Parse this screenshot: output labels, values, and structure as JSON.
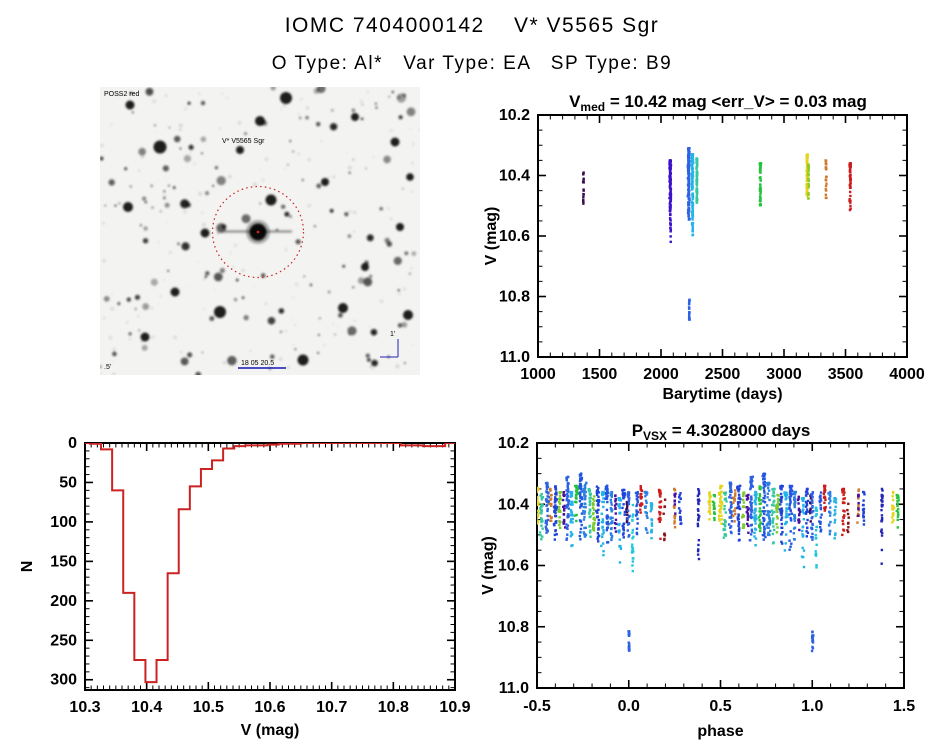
{
  "header": {
    "title": "IOMC 7404000142    V* V5565 Sgr",
    "subtitle": "O Type: Al*   Var Type: EA   SP Type: B9"
  },
  "finder": {
    "survey_label": "POSS2 red",
    "star_label": "V* V5565 Sgr",
    "bottom_label": "18 05 20.5",
    "corner_label": ".5'",
    "scale_label": "1'",
    "circle_color": "#cc2222",
    "annotation_blue": "#2222bb",
    "annotation_red": "#cc2222"
  },
  "chart_data": [
    {
      "id": "lightcurve",
      "type": "scatter",
      "title_main": "V",
      "title_sub": "med",
      "title_rest": " = 10.42 mag <err_V> = 0.03 mag",
      "xlabel": "Barytime (days)",
      "ylabel": "V (mag)",
      "xlim": [
        1000,
        4000
      ],
      "ylim": [
        10.2,
        11.0
      ],
      "y_inverted": true,
      "xticks": [
        1000,
        1500,
        2000,
        2500,
        3000,
        3500,
        4000
      ],
      "xtick_labels": [
        "1000",
        "1500",
        "2000",
        "2500",
        "3000",
        "3500",
        "4000"
      ],
      "x_minor": 100,
      "yticks": [
        10.2,
        10.4,
        10.6,
        10.8,
        11.0
      ],
      "ytick_labels": [
        "10.2",
        "10.4",
        "10.6",
        "10.8",
        "11.0"
      ],
      "y_minor": 0.05,
      "clusters": [
        {
          "x": 1370,
          "s": 4,
          "c": "#3d0a52",
          "y0": 10.39,
          "y1": 10.51,
          "n": 16,
          "k": 1.0
        },
        {
          "x": 2075,
          "s": 7,
          "c": "#3b12c8",
          "y0": 10.35,
          "y1": 10.55,
          "n": 110,
          "k": 1.6
        },
        {
          "x": 2078,
          "s": 3,
          "c": "#3b12c8",
          "y0": 10.55,
          "y1": 10.62,
          "n": 10,
          "k": 1.0
        },
        {
          "x": 2225,
          "s": 8,
          "c": "#2d62e2",
          "y0": 10.31,
          "y1": 10.55,
          "n": 130,
          "k": 1.6
        },
        {
          "x": 2230,
          "s": 3,
          "c": "#2d62e2",
          "y0": 10.81,
          "y1": 10.88,
          "n": 22,
          "k": 1.0
        },
        {
          "x": 2255,
          "s": 7,
          "c": "#22b4e8",
          "y0": 10.33,
          "y1": 10.57,
          "n": 110,
          "k": 1.7
        },
        {
          "x": 2258,
          "s": 3,
          "c": "#22b4e8",
          "y0": 10.57,
          "y1": 10.63,
          "n": 8,
          "k": 1.0
        },
        {
          "x": 2292,
          "s": 4,
          "c": "#35c8a0",
          "y0": 10.34,
          "y1": 10.49,
          "n": 60,
          "k": 1.2
        },
        {
          "x": 2808,
          "s": 6,
          "c": "#25c33b",
          "y0": 10.36,
          "y1": 10.5,
          "n": 55,
          "k": 1.8
        },
        {
          "x": 3188,
          "s": 6,
          "c": "#e4d51c",
          "y0": 10.33,
          "y1": 10.47,
          "n": 70,
          "k": 1.5
        },
        {
          "x": 3200,
          "s": 4,
          "c": "#8ccc28",
          "y0": 10.36,
          "y1": 10.48,
          "n": 30,
          "k": 1.5
        },
        {
          "x": 3342,
          "s": 4,
          "c": "#cf7a2c",
          "y0": 10.35,
          "y1": 10.48,
          "n": 22,
          "k": 1.2
        },
        {
          "x": 3538,
          "s": 6,
          "c": "#cd1d1d",
          "y0": 10.36,
          "y1": 10.52,
          "n": 60,
          "k": 1.8
        }
      ]
    },
    {
      "id": "histogram",
      "type": "bar",
      "xlabel": "V (mag)",
      "ylabel": "N",
      "color": "#cc2222",
      "xlim": [
        10.3,
        10.9
      ],
      "ylim": [
        0,
        313
      ],
      "xticks": [
        10.3,
        10.4,
        10.5,
        10.6,
        10.7,
        10.8,
        10.9
      ],
      "xtick_labels": [
        "10.3",
        "10.4",
        "10.5",
        "10.6",
        "10.7",
        "10.8",
        "10.9"
      ],
      "x_minor": 0.01,
      "yticks": [
        0,
        50,
        100,
        150,
        200,
        250,
        300
      ],
      "ytick_labels": [
        "0",
        "50",
        "100",
        "150",
        "200",
        "250",
        "300"
      ],
      "y_minor": 10,
      "bin_start": 10.308,
      "bin_width": 0.018,
      "counts": [
        1,
        8,
        60,
        190,
        275,
        303,
        275,
        165,
        84,
        55,
        33,
        22,
        7,
        4,
        3,
        3,
        2,
        1,
        1,
        0,
        0,
        0,
        0,
        0,
        0,
        0,
        0,
        0,
        3,
        3,
        4,
        4
      ]
    },
    {
      "id": "phase",
      "type": "scatter",
      "title_main": "P",
      "title_sub": "VSX",
      "title_rest": " = 4.3028000 days",
      "xlabel": "phase",
      "ylabel": "V (mag)",
      "xlim": [
        -0.5,
        1.5
      ],
      "ylim": [
        10.2,
        11.0
      ],
      "y_inverted": true,
      "fold": true,
      "xticks": [
        -0.5,
        0.0,
        0.5,
        1.0,
        1.5
      ],
      "xtick_labels": [
        "-0.5",
        "0.0",
        "0.5",
        "1.0",
        "1.5"
      ],
      "x_minor": 0.1,
      "yticks": [
        10.2,
        10.4,
        10.6,
        10.8,
        11.0
      ],
      "ytick_labels": [
        "10.2",
        "10.4",
        "10.6",
        "10.8",
        "11.0"
      ],
      "y_minor": 0.05,
      "clusters": [
        {
          "x": 0.5,
          "s": 0.01,
          "c": "#e4d51c",
          "y0": 10.34,
          "y1": 10.47,
          "n": 35,
          "k": 1.5
        },
        {
          "x": 0.525,
          "s": 0.009,
          "c": "#35c8a0",
          "y0": 10.36,
          "y1": 10.52,
          "n": 28,
          "k": 1.5
        },
        {
          "x": 0.555,
          "s": 0.01,
          "c": "#2d62e2",
          "y0": 10.33,
          "y1": 10.5,
          "n": 40,
          "k": 1.5
        },
        {
          "x": 0.575,
          "s": 0.007,
          "c": "#cf7a2c",
          "y0": 10.35,
          "y1": 10.46,
          "n": 16,
          "k": 1.2
        },
        {
          "x": 0.6,
          "s": 0.01,
          "c": "#2043d8",
          "y0": 10.34,
          "y1": 10.52,
          "n": 40,
          "k": 1.6
        },
        {
          "x": 0.625,
          "s": 0.008,
          "c": "#7acc28",
          "y0": 10.36,
          "y1": 10.48,
          "n": 22,
          "k": 1.4
        },
        {
          "x": 0.648,
          "s": 0.007,
          "c": "#4a10a0",
          "y0": 10.36,
          "y1": 10.5,
          "n": 18,
          "k": 1.3
        },
        {
          "x": 0.668,
          "s": 0.01,
          "c": "#2d62e2",
          "y0": 10.31,
          "y1": 10.52,
          "n": 45,
          "k": 1.6
        },
        {
          "x": 0.69,
          "s": 0.009,
          "c": "#22b4e8",
          "y0": 10.36,
          "y1": 10.54,
          "n": 35,
          "k": 1.7
        },
        {
          "x": 0.715,
          "s": 0.008,
          "c": "#25c33b",
          "y0": 10.34,
          "y1": 10.49,
          "n": 26,
          "k": 1.5
        },
        {
          "x": 0.738,
          "s": 0.01,
          "c": "#2356e0",
          "y0": 10.3,
          "y1": 10.52,
          "n": 45,
          "k": 1.6
        },
        {
          "x": 0.762,
          "s": 0.01,
          "c": "#2d80e2",
          "y0": 10.33,
          "y1": 10.52,
          "n": 40,
          "k": 1.6
        },
        {
          "x": 0.788,
          "s": 0.009,
          "c": "#35c8a0",
          "y0": 10.35,
          "y1": 10.53,
          "n": 28,
          "k": 1.5
        },
        {
          "x": 0.81,
          "s": 0.008,
          "c": "#7acc28",
          "y0": 10.37,
          "y1": 10.5,
          "n": 22,
          "k": 1.4
        },
        {
          "x": 0.832,
          "s": 0.009,
          "c": "#2043d8",
          "y0": 10.34,
          "y1": 10.53,
          "n": 36,
          "k": 1.6
        },
        {
          "x": 0.858,
          "s": 0.009,
          "c": "#22b4e8",
          "y0": 10.36,
          "y1": 10.57,
          "n": 30,
          "k": 1.8
        },
        {
          "x": 0.882,
          "s": 0.009,
          "c": "#2356e0",
          "y0": 10.34,
          "y1": 10.55,
          "n": 36,
          "k": 1.7
        },
        {
          "x": 0.905,
          "s": 0.008,
          "c": "#2d80e2",
          "y0": 10.36,
          "y1": 10.52,
          "n": 30,
          "k": 1.5
        },
        {
          "x": 0.928,
          "s": 0.007,
          "c": "#4a10a0",
          "y0": 10.36,
          "y1": 10.49,
          "n": 15,
          "k": 1.3
        },
        {
          "x": 0.95,
          "s": 0.008,
          "c": "#22b4e8",
          "y0": 10.38,
          "y1": 10.62,
          "n": 28,
          "k": 2.0
        },
        {
          "x": 0.972,
          "s": 0.008,
          "c": "#2043d8",
          "y0": 10.35,
          "y1": 10.51,
          "n": 26,
          "k": 1.5
        },
        {
          "x": 0.99,
          "s": 0.005,
          "c": "#3d0a52",
          "y0": 10.37,
          "y1": 10.46,
          "n": 10,
          "k": 1.0
        },
        {
          "x": 0.0,
          "s": 0.007,
          "c": "#2d62e2",
          "y0": 10.36,
          "y1": 10.52,
          "n": 25,
          "k": 1.5
        },
        {
          "x": 0.002,
          "s": 0.004,
          "c": "#2d62e2",
          "y0": 10.81,
          "y1": 10.88,
          "n": 18,
          "k": 1.0
        },
        {
          "x": 0.022,
          "s": 0.005,
          "c": "#22c8d8",
          "y0": 10.4,
          "y1": 10.62,
          "n": 22,
          "k": 1.2
        },
        {
          "x": 0.045,
          "s": 0.008,
          "c": "#2356e0",
          "y0": 10.36,
          "y1": 10.5,
          "n": 22,
          "k": 1.5
        },
        {
          "x": 0.068,
          "s": 0.007,
          "c": "#cd1d1d",
          "y0": 10.34,
          "y1": 10.43,
          "n": 20,
          "k": 1.3
        },
        {
          "x": 0.095,
          "s": 0.008,
          "c": "#2d80e2",
          "y0": 10.36,
          "y1": 10.5,
          "n": 22,
          "k": 1.5
        },
        {
          "x": 0.125,
          "s": 0.007,
          "c": "#22b4e8",
          "y0": 10.38,
          "y1": 10.52,
          "n": 18,
          "k": 1.4
        },
        {
          "x": 0.17,
          "s": 0.008,
          "c": "#cd1d1d",
          "y0": 10.35,
          "y1": 10.52,
          "n": 26,
          "k": 1.6
        },
        {
          "x": 0.195,
          "s": 0.005,
          "c": "#8a1515",
          "y0": 10.38,
          "y1": 10.52,
          "n": 9,
          "k": 1.0
        },
        {
          "x": 0.25,
          "s": 0.006,
          "c": "#cf7a2c",
          "y0": 10.35,
          "y1": 10.48,
          "n": 13,
          "k": 1.1
        },
        {
          "x": 0.252,
          "s": 0.004,
          "c": "#4a10a0",
          "y0": 10.36,
          "y1": 10.44,
          "n": 8,
          "k": 1.0
        },
        {
          "x": 0.28,
          "s": 0.007,
          "c": "#2043d8",
          "y0": 10.36,
          "y1": 10.48,
          "n": 16,
          "k": 1.4
        },
        {
          "x": 0.38,
          "s": 0.006,
          "c": "#2525b8",
          "y0": 10.35,
          "y1": 10.61,
          "n": 26,
          "k": 1.9
        },
        {
          "x": 0.44,
          "s": 0.007,
          "c": "#e4d51c",
          "y0": 10.36,
          "y1": 10.46,
          "n": 18,
          "k": 1.4
        },
        {
          "x": 0.465,
          "s": 0.007,
          "c": "#25c33b",
          "y0": 10.37,
          "y1": 10.49,
          "n": 16,
          "k": 1.4
        }
      ]
    }
  ]
}
